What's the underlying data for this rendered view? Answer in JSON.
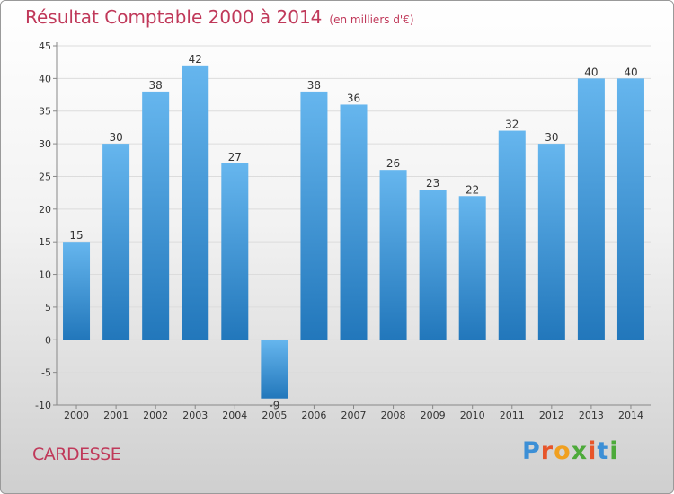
{
  "header": {
    "title": "Résultat Comptable 2000 à 2014",
    "subtitle": "(en milliers d'€)"
  },
  "commune": "CARDESSE",
  "logo": {
    "text": "Proxiti",
    "letters": [
      "P",
      "r",
      "o",
      "x",
      "i",
      "t",
      "i"
    ],
    "colors": [
      "#3c8fd6",
      "#e7552a",
      "#f0a020",
      "#4daa3a",
      "#e7552a",
      "#3c8fd6",
      "#4daa3a"
    ]
  },
  "colors": {
    "bar_top": "#66b6ee",
    "bar_bottom": "#2277bb",
    "title": "#c0395a"
  },
  "chart_data": {
    "type": "bar",
    "title": "Résultat Comptable 2000 à 2014",
    "subtitle": "(en milliers d'€)",
    "categories": [
      "2000",
      "2001",
      "2002",
      "2003",
      "2004",
      "2005",
      "2006",
      "2007",
      "2008",
      "2009",
      "2010",
      "2011",
      "2012",
      "2013",
      "2014"
    ],
    "values": [
      15,
      30,
      38,
      42,
      27,
      -9,
      38,
      36,
      26,
      23,
      22,
      32,
      30,
      40,
      40
    ],
    "ylim": [
      -10,
      45
    ],
    "yticks": [
      -10,
      -5,
      0,
      5,
      10,
      15,
      20,
      25,
      30,
      35,
      40,
      45
    ],
    "grid": true,
    "xlabel": "",
    "ylabel": ""
  }
}
